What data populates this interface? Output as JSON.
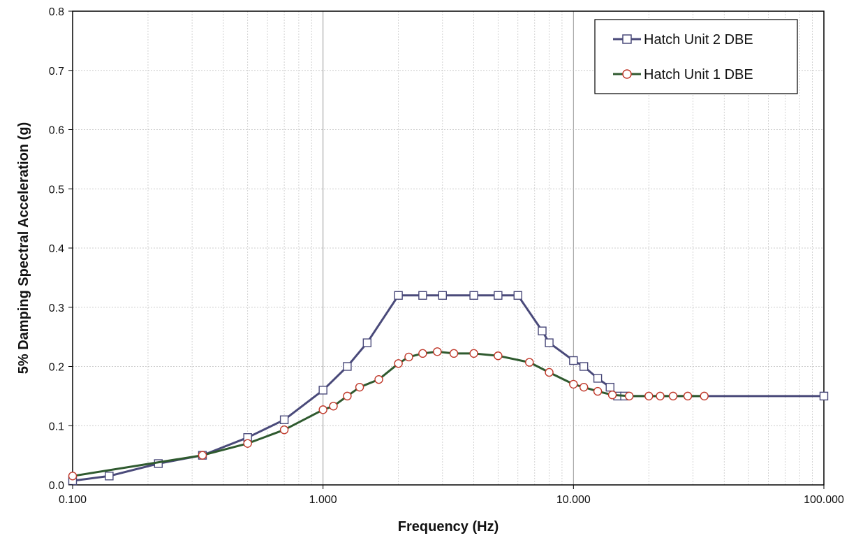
{
  "chart_data": {
    "type": "line",
    "title": "",
    "xlabel": "Frequency (Hz)",
    "ylabel": "5% Damping Spectral Acceleration (g)",
    "xscale": "log",
    "xlim": [
      0.1,
      100
    ],
    "ylim": [
      0,
      0.8
    ],
    "x_tick_labels": [
      "0.100",
      "1.000",
      "10.000",
      "100.000"
    ],
    "x_tick_values": [
      0.1,
      1,
      10,
      100
    ],
    "y_tick_labels": [
      "0.0",
      "0.1",
      "0.2",
      "0.3",
      "0.4",
      "0.5",
      "0.6",
      "0.7",
      "0.8"
    ],
    "y_tick_values": [
      0,
      0.1,
      0.2,
      0.3,
      0.4,
      0.5,
      0.6,
      0.7,
      0.8
    ],
    "grid": true,
    "legend_position": "top-right",
    "series": [
      {
        "name": "Hatch Unit 2 DBE",
        "color": "#4a4a7a",
        "marker": "square",
        "x": [
          0.1,
          0.14,
          0.22,
          0.33,
          0.5,
          0.7,
          1.0,
          1.25,
          1.5,
          2.0,
          2.5,
          3.0,
          4.0,
          5.0,
          6.0,
          7.5,
          8.0,
          10.0,
          11.0,
          12.5,
          14.0,
          15.0,
          16.0,
          100.0
        ],
        "y": [
          0.007,
          0.015,
          0.036,
          0.05,
          0.08,
          0.11,
          0.16,
          0.2,
          0.24,
          0.32,
          0.32,
          0.32,
          0.32,
          0.32,
          0.32,
          0.26,
          0.24,
          0.21,
          0.2,
          0.18,
          0.165,
          0.15,
          0.15,
          0.15
        ]
      },
      {
        "name": "Hatch Unit 1 DBE",
        "color": "#2f5a2f",
        "marker_color": "#c0392b",
        "marker": "circle",
        "x": [
          0.1,
          0.33,
          0.5,
          0.7,
          1.0,
          1.1,
          1.25,
          1.4,
          1.67,
          2.0,
          2.2,
          2.5,
          2.86,
          3.33,
          4.0,
          5.0,
          6.67,
          8.0,
          10.0,
          11.0,
          12.5,
          14.3,
          16.7,
          20.0,
          22.2,
          25.0,
          28.6,
          33.3
        ],
        "y": [
          0.015,
          0.05,
          0.07,
          0.093,
          0.127,
          0.133,
          0.15,
          0.165,
          0.178,
          0.205,
          0.216,
          0.222,
          0.225,
          0.222,
          0.222,
          0.218,
          0.207,
          0.19,
          0.17,
          0.165,
          0.158,
          0.152,
          0.15,
          0.15,
          0.15,
          0.15,
          0.15,
          0.15
        ]
      }
    ]
  }
}
